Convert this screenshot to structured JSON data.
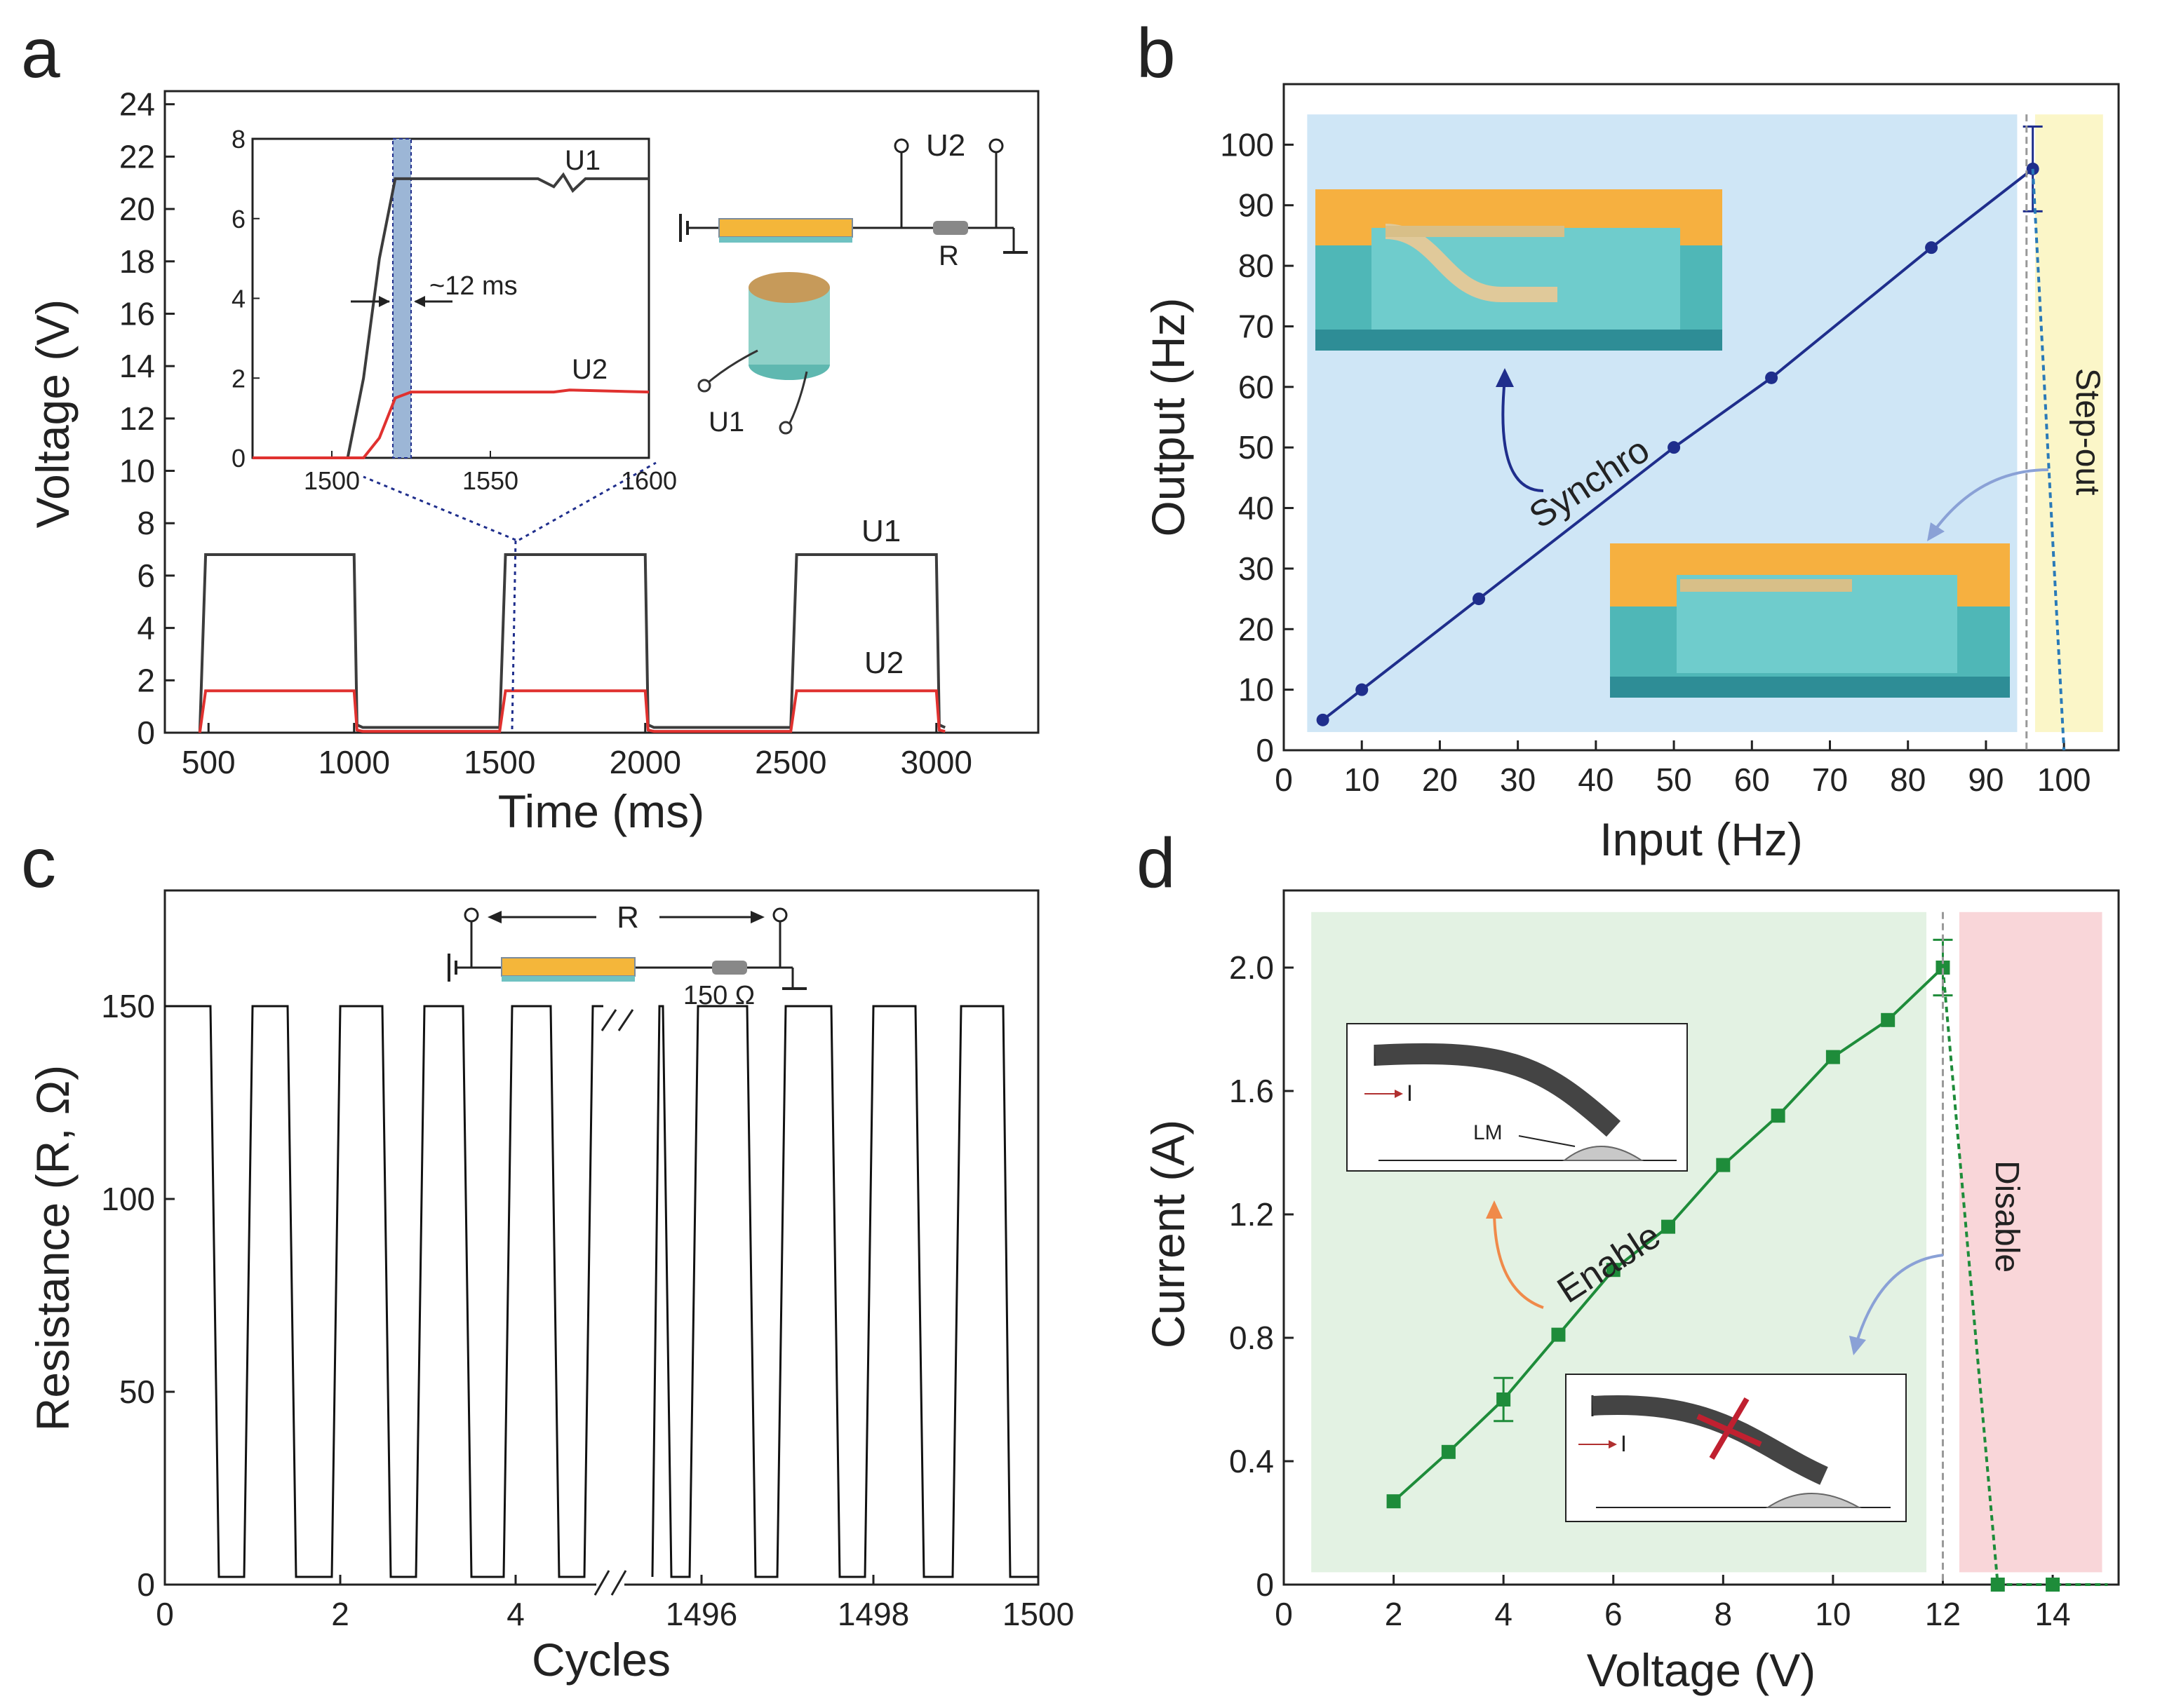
{
  "colors": {
    "accent_blue": "#1f2e8c",
    "green": "#1e8c3a",
    "red": "#e0312f",
    "dark": "#3c3c3c",
    "synchro_bg": "#cfe6f6",
    "stepout_bg": "#fbf6c8",
    "enable_bg": "#e3f2e3",
    "disable_bg": "#f9d6d9"
  },
  "chart_data": [
    {
      "panel": "a",
      "type": "line",
      "xlabel": "Time (ms)",
      "ylabel": "Voltage (V)",
      "xlim": [
        350,
        3350
      ],
      "ylim": [
        0,
        24.5
      ],
      "xticks": [
        500,
        1000,
        1500,
        2000,
        2500,
        3000
      ],
      "yticks": [
        0,
        2,
        4,
        6,
        8,
        10,
        12,
        14,
        16,
        18,
        20,
        22,
        24
      ],
      "series": [
        {
          "name": "U1",
          "x": [
            470,
            490,
            500,
            1000,
            1010,
            1030,
            1500,
            1520,
            1530,
            2000,
            2010,
            2030,
            2500,
            2520,
            2530,
            3000,
            3010,
            3030
          ],
          "y": [
            0,
            6.8,
            6.8,
            6.8,
            0.3,
            0.2,
            0.2,
            6.8,
            6.8,
            6.8,
            0.3,
            0.2,
            0.2,
            6.8,
            6.8,
            6.8,
            0.3,
            0.2
          ]
        },
        {
          "name": "U2",
          "x": [
            470,
            490,
            500,
            1000,
            1010,
            1030,
            1500,
            1520,
            1530,
            2000,
            2010,
            2030,
            2500,
            2520,
            2530,
            3000,
            3010,
            3030
          ],
          "y": [
            0,
            1.6,
            1.6,
            1.6,
            0.1,
            0.05,
            0.05,
            1.6,
            1.6,
            1.6,
            0.1,
            0.05,
            0.05,
            1.6,
            1.6,
            1.6,
            0.1,
            0.05
          ]
        }
      ],
      "labels": [
        "U1",
        "U2"
      ],
      "inset": {
        "xlim": [
          1475,
          1600
        ],
        "ylim": [
          0,
          8
        ],
        "xticks": [
          1500,
          1550,
          1600
        ],
        "yticks": [
          0,
          2,
          4,
          6,
          8
        ],
        "series": [
          {
            "name": "U1",
            "x": [
              1475,
              1505,
              1510,
              1515,
              1520,
              1525,
              1565,
              1570,
              1573,
              1576,
              1580,
              1600
            ],
            "y": [
              0,
              0,
              2,
              5,
              7,
              7,
              7,
              6.8,
              7.1,
              6.7,
              7,
              7
            ]
          },
          {
            "name": "U2",
            "x": [
              1475,
              1510,
              1515,
              1520,
              1525,
              1570,
              1575,
              1600
            ],
            "y": [
              0,
              0,
              0.5,
              1.5,
              1.65,
              1.65,
              1.7,
              1.65
            ]
          }
        ],
        "annotation": "~12 ms",
        "labels": [
          "U1",
          "U2"
        ]
      },
      "circuit_labels": {
        "u2": "U2",
        "r": "R",
        "u1": "U1"
      }
    },
    {
      "panel": "b",
      "type": "line",
      "xlabel": "Input (Hz)",
      "ylabel": "Output (Hz)",
      "xlim": [
        0,
        107
      ],
      "ylim": [
        0,
        110
      ],
      "xticks": [
        0,
        10,
        20,
        30,
        40,
        50,
        60,
        70,
        80,
        90,
        100
      ],
      "yticks": [
        0,
        10,
        20,
        30,
        40,
        50,
        60,
        70,
        80,
        90,
        100
      ],
      "series": [
        {
          "name": "Synchro",
          "x": [
            5,
            10,
            25,
            50,
            62.5,
            83,
            96
          ],
          "y": [
            5,
            10,
            25,
            50,
            61.5,
            83,
            96
          ],
          "error_last": 7
        },
        {
          "name": "Step-out",
          "x": [
            96,
            100
          ],
          "y": [
            96,
            0
          ]
        }
      ],
      "regions": [
        "Synchro",
        "Step-out"
      ]
    },
    {
      "panel": "c",
      "type": "line",
      "xlabel": "Cycles",
      "ylabel": "Resistance (R, Ω)",
      "ylim": [
        0,
        180
      ],
      "xtick_labels": [
        "0",
        "2",
        "4",
        "1496",
        "1498",
        "1500"
      ],
      "yticks": [
        0,
        50,
        100,
        150
      ],
      "high": 150,
      "low": 2,
      "circuit_labels": {
        "r": "R",
        "resistor": "150 Ω"
      }
    },
    {
      "panel": "d",
      "type": "line",
      "xlabel": "Voltage (V)",
      "ylabel": "Current (A)",
      "xlim": [
        0,
        15.2
      ],
      "ylim": [
        0,
        2.25
      ],
      "xticks": [
        0,
        2,
        4,
        6,
        8,
        10,
        12,
        14
      ],
      "yticks": [
        0,
        0.4,
        0.8,
        1.2,
        1.6,
        2.0
      ],
      "ytick_labels": [
        "0",
        "0.4",
        "0.8",
        "1.2",
        "1.6",
        "2.0"
      ],
      "series": [
        {
          "name": "Enable",
          "x": [
            2,
            3,
            4,
            5,
            6,
            7,
            8,
            9,
            10,
            11,
            12
          ],
          "y": [
            0.27,
            0.43,
            0.6,
            0.81,
            1.02,
            1.16,
            1.36,
            1.52,
            1.71,
            1.83,
            2.0
          ]
        },
        {
          "name": "Disable",
          "x": [
            12,
            13,
            14,
            15
          ],
          "y": [
            2.0,
            0,
            0,
            0
          ]
        }
      ],
      "regions": [
        "Enable",
        "Disable"
      ],
      "inset_labels": {
        "current": "I",
        "lm": "LM"
      }
    }
  ],
  "panels": {
    "a": "a",
    "b": "b",
    "c": "c",
    "d": "d"
  }
}
